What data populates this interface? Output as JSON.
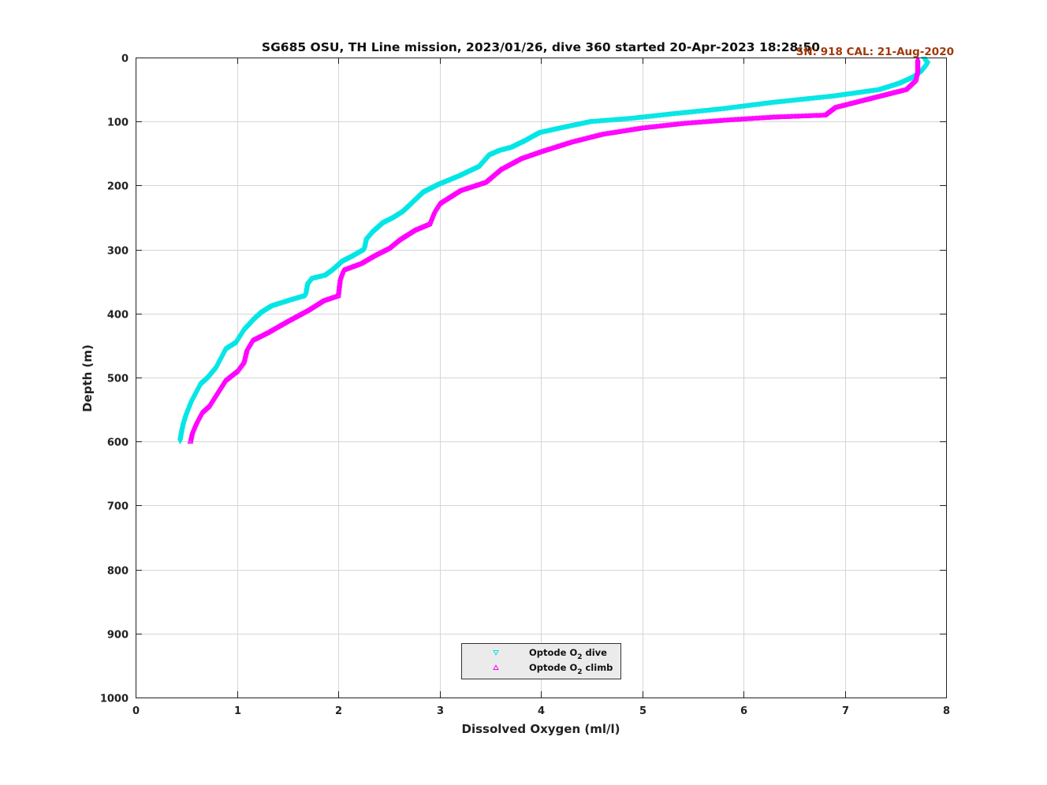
{
  "chart_data": {
    "type": "scatter",
    "title": "SG685 OSU, TH Line mission, 2023/01/26, dive 360 started 20-Apr-2023 18:28:50",
    "subtitle": "SN: 918  CAL: 21-Aug-2020",
    "xlabel": "Dissolved Oxygen (ml/l)",
    "ylabel": "Depth (m)",
    "xlim": [
      0,
      8
    ],
    "ylim": [
      0,
      1000
    ],
    "y_reversed": true,
    "xticks": [
      "0",
      "1",
      "2",
      "3",
      "4",
      "5",
      "6",
      "7",
      "8"
    ],
    "yticks": [
      "0",
      "100",
      "200",
      "300",
      "400",
      "500",
      "600",
      "700",
      "800",
      "900",
      "1000"
    ],
    "grid": true,
    "legend_position": "bottom-center",
    "series": [
      {
        "name": "Optode O2 dive",
        "legend_base": "Optode O",
        "legend_sub": "2",
        "legend_tail": " dive",
        "marker": "triangle-down",
        "color": "#00e5e5",
        "points": [
          [
            7.78,
            2
          ],
          [
            7.82,
            10
          ],
          [
            7.77,
            20
          ],
          [
            7.69,
            30
          ],
          [
            7.55,
            40
          ],
          [
            7.35,
            50
          ],
          [
            6.9,
            60
          ],
          [
            6.3,
            70
          ],
          [
            5.8,
            80
          ],
          [
            5.3,
            88
          ],
          [
            4.9,
            95
          ],
          [
            4.5,
            100
          ],
          [
            4.2,
            110
          ],
          [
            4.0,
            117
          ],
          [
            3.85,
            130
          ],
          [
            3.72,
            140
          ],
          [
            3.6,
            145
          ],
          [
            3.5,
            152
          ],
          [
            3.4,
            170
          ],
          [
            3.2,
            185
          ],
          [
            3.0,
            198
          ],
          [
            2.85,
            210
          ],
          [
            2.75,
            225
          ],
          [
            2.65,
            240
          ],
          [
            2.55,
            250
          ],
          [
            2.45,
            258
          ],
          [
            2.35,
            272
          ],
          [
            2.28,
            285
          ],
          [
            2.26,
            300
          ],
          [
            2.15,
            310
          ],
          [
            2.05,
            318
          ],
          [
            1.95,
            332
          ],
          [
            1.88,
            340
          ],
          [
            1.75,
            345
          ],
          [
            1.7,
            355
          ],
          [
            1.68,
            372
          ],
          [
            1.55,
            378
          ],
          [
            1.35,
            388
          ],
          [
            1.25,
            398
          ],
          [
            1.18,
            408
          ],
          [
            1.08,
            425
          ],
          [
            1.0,
            445
          ],
          [
            0.9,
            455
          ],
          [
            0.85,
            470
          ],
          [
            0.8,
            485
          ],
          [
            0.72,
            500
          ],
          [
            0.65,
            510
          ],
          [
            0.6,
            525
          ],
          [
            0.55,
            540
          ],
          [
            0.5,
            560
          ],
          [
            0.47,
            575
          ],
          [
            0.45,
            590
          ],
          [
            0.44,
            600
          ]
        ]
      },
      {
        "name": "Optode O2 climb",
        "legend_base": "Optode O",
        "legend_sub": "2",
        "legend_tail": " climb",
        "marker": "triangle-up",
        "color": "#ff00ff",
        "points": [
          [
            7.72,
            2
          ],
          [
            7.72,
            20
          ],
          [
            7.7,
            35
          ],
          [
            7.6,
            50
          ],
          [
            7.3,
            62
          ],
          [
            6.9,
            78
          ],
          [
            6.8,
            90
          ],
          [
            6.3,
            93
          ],
          [
            5.8,
            98
          ],
          [
            5.4,
            103
          ],
          [
            5.0,
            110
          ],
          [
            4.6,
            120
          ],
          [
            4.3,
            132
          ],
          [
            4.0,
            147
          ],
          [
            3.8,
            158
          ],
          [
            3.6,
            175
          ],
          [
            3.45,
            195
          ],
          [
            3.2,
            208
          ],
          [
            3.0,
            228
          ],
          [
            2.95,
            240
          ],
          [
            2.9,
            260
          ],
          [
            2.75,
            270
          ],
          [
            2.6,
            285
          ],
          [
            2.5,
            298
          ],
          [
            2.35,
            310
          ],
          [
            2.22,
            322
          ],
          [
            2.05,
            332
          ],
          [
            2.02,
            345
          ],
          [
            2.0,
            372
          ],
          [
            1.85,
            380
          ],
          [
            1.7,
            395
          ],
          [
            1.5,
            412
          ],
          [
            1.3,
            430
          ],
          [
            1.15,
            442
          ],
          [
            1.1,
            455
          ],
          [
            1.07,
            475
          ],
          [
            1.0,
            490
          ],
          [
            0.88,
            505
          ],
          [
            0.82,
            520
          ],
          [
            0.78,
            530
          ],
          [
            0.72,
            545
          ],
          [
            0.65,
            555
          ],
          [
            0.6,
            570
          ],
          [
            0.56,
            585
          ],
          [
            0.54,
            600
          ]
        ]
      }
    ]
  }
}
